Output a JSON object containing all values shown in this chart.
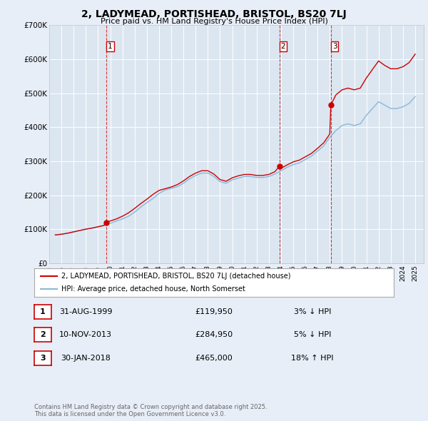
{
  "title": "2, LADYMEAD, PORTISHEAD, BRISTOL, BS20 7LJ",
  "subtitle": "Price paid vs. HM Land Registry's House Price Index (HPI)",
  "bg_color": "#e8eef8",
  "plot_bg_color": "#dce6f0",
  "red_color": "#cc0000",
  "blue_color": "#88b8d8",
  "ylim": [
    0,
    700000
  ],
  "yticks": [
    0,
    100000,
    200000,
    300000,
    400000,
    500000,
    600000,
    700000
  ],
  "ytick_labels": [
    "£0",
    "£100K",
    "£200K",
    "£300K",
    "£400K",
    "£500K",
    "£600K",
    "£700K"
  ],
  "xmin": 1995.3,
  "xmax": 2025.7,
  "sale_dates": [
    1999.664,
    2013.861,
    2018.08
  ],
  "sale_prices": [
    119950,
    284950,
    465000
  ],
  "vline_labels": [
    "1",
    "2",
    "3"
  ],
  "legend_line1": "2, LADYMEAD, PORTISHEAD, BRISTOL, BS20 7LJ (detached house)",
  "legend_line2": "HPI: Average price, detached house, North Somerset",
  "table_rows": [
    [
      "1",
      "31-AUG-1999",
      "£119,950",
      "3% ↓ HPI"
    ],
    [
      "2",
      "10-NOV-2013",
      "£284,950",
      "5% ↓ HPI"
    ],
    [
      "3",
      "30-JAN-2018",
      "£465,000",
      "18% ↑ HPI"
    ]
  ],
  "footer": "Contains HM Land Registry data © Crown copyright and database right 2025.\nThis data is licensed under the Open Government Licence v3.0.",
  "hpi_times": [
    1995.5,
    1996.0,
    1996.5,
    1997.0,
    1997.5,
    1998.0,
    1998.5,
    1999.0,
    1999.5,
    2000.0,
    2000.5,
    2001.0,
    2001.5,
    2002.0,
    2002.5,
    2003.0,
    2003.5,
    2004.0,
    2004.5,
    2005.0,
    2005.5,
    2006.0,
    2006.5,
    2007.0,
    2007.5,
    2008.0,
    2008.5,
    2009.0,
    2009.5,
    2010.0,
    2010.5,
    2011.0,
    2011.5,
    2012.0,
    2012.5,
    2013.0,
    2013.5,
    2014.0,
    2014.5,
    2015.0,
    2015.5,
    2016.0,
    2016.5,
    2017.0,
    2017.5,
    2018.0,
    2018.5,
    2019.0,
    2019.5,
    2020.0,
    2020.5,
    2021.0,
    2021.5,
    2022.0,
    2022.5,
    2023.0,
    2023.5,
    2024.0,
    2024.5,
    2025.0
  ],
  "hpi_values": [
    83000,
    85000,
    88000,
    92000,
    96000,
    100000,
    103000,
    107000,
    111000,
    117000,
    124000,
    130000,
    138000,
    150000,
    165000,
    178000,
    190000,
    205000,
    215000,
    220000,
    225000,
    235000,
    248000,
    258000,
    265000,
    265000,
    255000,
    240000,
    235000,
    245000,
    250000,
    255000,
    255000,
    252000,
    252000,
    255000,
    262000,
    272000,
    282000,
    290000,
    295000,
    305000,
    315000,
    330000,
    345000,
    370000,
    390000,
    405000,
    410000,
    405000,
    410000,
    435000,
    455000,
    475000,
    465000,
    455000,
    455000,
    460000,
    470000,
    490000
  ],
  "price_times": [
    1995.5,
    1996.0,
    1996.5,
    1997.0,
    1997.5,
    1998.0,
    1998.5,
    1999.0,
    1999.5,
    1999.664,
    2000.0,
    2000.5,
    2001.0,
    2001.5,
    2002.0,
    2002.5,
    2003.0,
    2003.5,
    2004.0,
    2004.5,
    2005.0,
    2005.5,
    2006.0,
    2006.5,
    2007.0,
    2007.5,
    2008.0,
    2008.5,
    2009.0,
    2009.5,
    2010.0,
    2010.5,
    2011.0,
    2011.5,
    2012.0,
    2012.5,
    2013.0,
    2013.5,
    2013.861,
    2014.0,
    2014.5,
    2015.0,
    2015.5,
    2016.0,
    2016.5,
    2017.0,
    2017.5,
    2018.0,
    2018.08,
    2018.5,
    2019.0,
    2019.5,
    2020.0,
    2020.5,
    2021.0,
    2021.5,
    2022.0,
    2022.5,
    2023.0,
    2023.5,
    2024.0,
    2024.5,
    2025.0
  ],
  "price_values": [
    83000,
    85000,
    88000,
    92000,
    96000,
    100000,
    103000,
    107000,
    111000,
    119950,
    124000,
    130000,
    138000,
    148000,
    161000,
    175000,
    188000,
    202000,
    214000,
    219000,
    224000,
    231000,
    242000,
    255000,
    265000,
    272000,
    272000,
    262000,
    246000,
    241000,
    251000,
    257000,
    261000,
    261000,
    258000,
    258000,
    261000,
    269000,
    284950,
    279000,
    289000,
    298000,
    303000,
    313000,
    323000,
    338000,
    354000,
    380000,
    465000,
    495000,
    510000,
    515000,
    510000,
    515000,
    545000,
    570000,
    595000,
    582000,
    572000,
    572000,
    578000,
    590000,
    615000
  ]
}
